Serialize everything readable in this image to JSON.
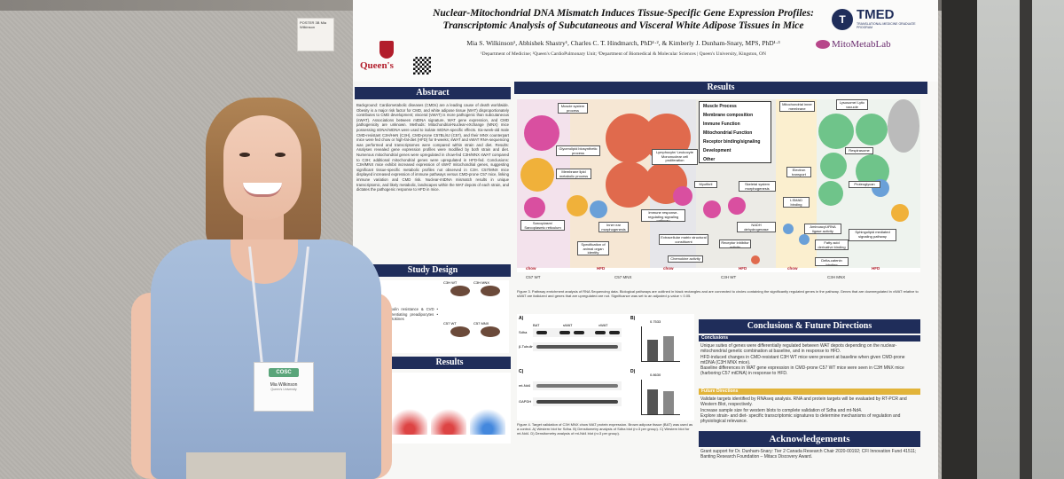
{
  "note_card": {
    "text": "POSTER 3B Mia Wilkinson"
  },
  "poster": {
    "title": "Nuclear-Mitochondrial DNA Mismatch Induces Tissue-Specific Gene Expression Profiles: Transcriptomic Analysis of Subcutaneous and Visceral White Adipose Tissues in Mice",
    "authors": "Mia S. Wilkinson¹, Abhishek Shastry¹, Charles C. T. Hindmarch, PhD¹·², & Kimberly J. Dunham-Snary, MPS, PhD¹·³",
    "affiliations": "¹Department of Medicine; ²Queen's CardioPulmonary Unit; ³Department of Biomedical & Molecular Sciences | Queen's University, Kingston, ON",
    "queens_logo": "Queen's",
    "tmed_logo": "TMED",
    "tmed_sub": "TRANSLATIONAL MEDICINE GRADUATE PROGRAM",
    "lab_logo": "MitoMetabLab",
    "sections": {
      "abstract": "Abstract",
      "study_design": "Study Design",
      "results_left": "Results",
      "results_main": "Results",
      "conclusions": "Conclusions & Future Directions",
      "acknowledgements": "Acknowledgements"
    },
    "abstract_text": "Background: Cardiometabolic diseases (CMDs) are a leading cause of death worldwide. Obesity is a major risk factor for CMD, and white adipose tissue (WAT) disproportionately contributes to CMD development; visceral (vWAT) is more pathogenic than subcutaneous (sWAT). Associations between mtDNA signature, WAT gene expression, and CMD pathogenicity are unknown. Methods: Mitochondrial-Nuclear-eXchange (MNX) mice possessing nDNA/mtDNA were used to isolate mtDNA-specific effects. Six-week-old male CMD-resistant C3H/HeN (C3H), CMD-prone C57BL/6J (C57), and their MNX counterpart mice were fed chow or high-fat-diet (HFD) for 8-weeks; sWAT and vWAT RNA-sequencing was performed and transcriptomes were compared within strain and diet. Results: Analyses revealed gene expression profiles were modified by both strain and diet. Numerous mitochondrial genes were upregulated in chow-fed C3H/MNX sWAT compared to C3H; additional mitochondrial genes were upregulated in HFD-fed. Conclusions: C3H/MNX mice exhibit increased expression of sWAT mitochondrial genes, suggesting significant tissue-specific metabolic profiles not observed in C3H. C57/MNX mice displayed increased expression of immune pathways versus CMD-prone C57 mice, linking immune variation and CMD risk. Nuclear-mtDNA mismatch results in unique transcriptomic, and likely metabolic, landscapes within the WAT depots of each strain, and dictates the pathogenic response to HFD in mice.",
    "study_design_text": "Correlated with insulin resistance & CVD • Adipocytes • Differentiating preadipocytes • Pro-inflammatory cytokines",
    "legend_items": [
      "Muscle Process",
      "Membrane composition",
      "Immune Function",
      "Mitochondrial Function",
      "Receptor binding/signaling",
      "Development",
      "Other"
    ],
    "pathway_labels": [
      "Muscle system process",
      "Glycerolipid biosynthetic process",
      "Membrane lipid metabolic process",
      "Sarcoplasm/ Sarcoplasmic reticulum",
      "Specification of animal organ identity",
      "Inner ear morphogenesis",
      "Lymphocyte/ Leukocyte Mononuclear cell proliferation",
      "Immune response-regulating signaling pathway",
      "Myofibril",
      "Skeletal system morphogenesis",
      "Extracellular matrix structural constituent",
      "Chemokine activity",
      "NADH dehydrogenase activity",
      "I-SMAD binding",
      "Receptor inhibitor activity",
      "Mitochondrial inner membrane",
      "Electron transport chain",
      "Aminoacyl-tRNA ligase activity",
      "Fatty acid derivative binding",
      "Delta-catenin binding",
      "Lysosome/ Lytic vacuole",
      "Respirasome",
      "Proteoglycan binding",
      "Sphingolipid mediated signaling pathway"
    ],
    "band_labels": [
      "chow",
      "HFD",
      "chow",
      "HFD",
      "chow",
      "HFD"
    ],
    "group_labels": [
      "C57 WT",
      "C57 MNX",
      "C3H WT",
      "C3H MNX"
    ],
    "figure3_caption": "Figure 3. Pathway enrichment analysis of RNA Sequencing data. Biological pathways are outlined in black rectangles and are connected to circles containing the significantly regulated genes in the pathway. Genes that are downregulated in vWAT relative to sWAT are italicized and genes that are upregulated are not. Significance was set to an adjusted p-value < 0.05.",
    "figure4_caption": "Figure 4. Target validation of C3H MNX chow WAT protein expression. Brown adipose tissue (BAT) was used as a control. A) Western blot for Sdha. B) Densitometry analysis of Sdha blot (n=3 per group). C) Western blot for mt-Nd4. D) Densitometry analysis of mt-Nd4 blot (n=3 per group).",
    "blot_labels": {
      "a": "A)",
      "b": "B)",
      "c": "C)",
      "d": "D)",
      "sdha": "Sdha",
      "btub": "β-Tubulin",
      "nd4": "mt-Nd4",
      "gapdh": "GAPDH",
      "bat": "BAT",
      "swat": "sWAT",
      "vwat": "vWAT",
      "p1": "0.7533",
      "p2": "0.8630"
    },
    "conclusions_head": "Conclusions",
    "conclusions": [
      "Unique suites of genes were differentially regulated between WAT depots depending on the nuclear-mitochondrial genetic combination at baseline, and in response to HFD.",
      "HFD-induced changes in CMD-resistant C3H WT mice were present at baseline when given CMD-prone mtDNA (C3H MNX mice).",
      "Baseline differences in WAT gene expression in CMD-prone C57 WT mice were seen in C3H MNX mice (harboring C57 mtDNA) in response to HFD."
    ],
    "future_head": "Future Directions",
    "future": [
      "Validate targets identified by RNAseq analysis. RNA and protein targets will be evaluated by RT-PCR and Western Blot, respectively.",
      "Increase sample size for western blots to complete validation of Sdha and mt-Nd4.",
      "Explore strain- and diet- specific transcriptomic signatures to determine mechanisms of regulation and physiological relevance."
    ],
    "ack_text": "Grant support for Dr. Dunham-Snary: Tier 2 Canada Research Chair 2020-00192; CFI Innovation Fund 41511; Banting Research Foundation – Mitacs Discovery Award."
  },
  "badge": {
    "logo": "COSC",
    "name": "Mia Wilkinson",
    "affiliation": "Queen's University"
  },
  "colors": {
    "navy": "#1f2d5a",
    "muscle": "#d94fa0",
    "membrane": "#f0b13a",
    "immune": "#e06a4d",
    "mito": "#6fc48a",
    "receptor": "#6aa0d8",
    "development": "#9a6cc7"
  }
}
